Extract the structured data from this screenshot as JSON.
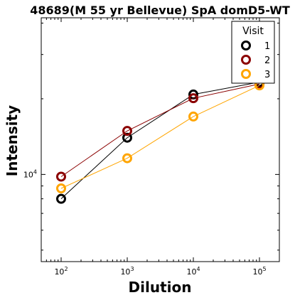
{
  "chart_data": {
    "type": "line",
    "title": "48689(M 55 yr Bellevue) SpA domD5-WT",
    "xlabel": "Dilution",
    "ylabel": "Intensity",
    "x_scale": "log",
    "y_scale": "log",
    "xlim": [
      50,
      200000
    ],
    "ylim": [
      4500,
      42000
    ],
    "x_ticks": [
      {
        "value": 100,
        "base": "10",
        "exp": "2"
      },
      {
        "value": 1000,
        "base": "10",
        "exp": "3"
      },
      {
        "value": 10000,
        "base": "10",
        "exp": "4"
      },
      {
        "value": 100000,
        "base": "10",
        "exp": "5"
      }
    ],
    "y_ticks": [
      {
        "value": 10000,
        "base": "10",
        "exp": "4"
      }
    ],
    "legend": {
      "title": "Visit",
      "position": "top-right"
    },
    "x": [
      100,
      1000,
      10000,
      100000
    ],
    "series": [
      {
        "name": "1",
        "color": "#000000",
        "values": [
          8000,
          14000,
          20800,
          23300
        ]
      },
      {
        "name": "2",
        "color": "#8b0000",
        "values": [
          9800,
          14900,
          20100,
          22900
        ]
      },
      {
        "name": "3",
        "color": "#ffa500",
        "values": [
          8800,
          11600,
          17000,
          22600
        ]
      }
    ]
  }
}
